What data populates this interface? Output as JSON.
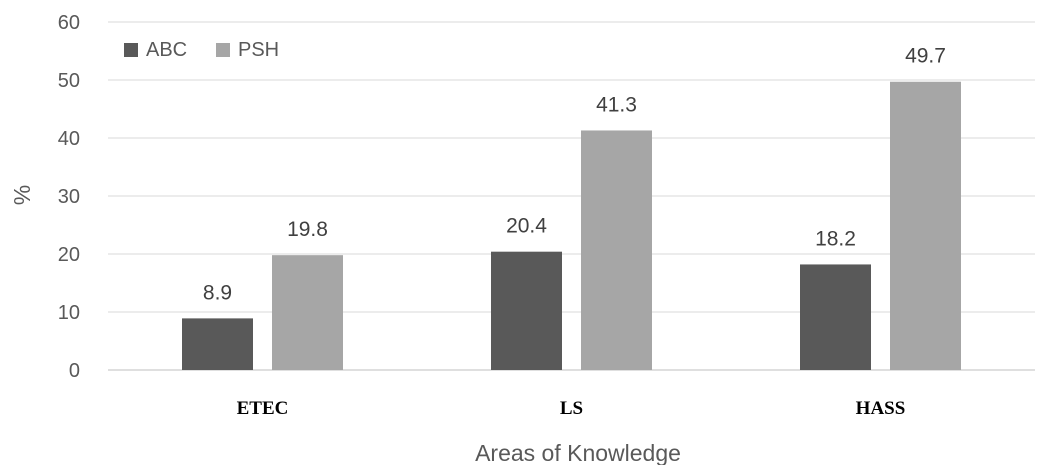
{
  "chart_data": {
    "type": "bar",
    "categories": [
      "ETEC",
      "LS",
      "HASS"
    ],
    "series": [
      {
        "name": "ABC",
        "values": [
          8.9,
          20.4,
          18.2
        ],
        "color": "#595959"
      },
      {
        "name": "PSH",
        "values": [
          19.8,
          41.3,
          49.7
        ],
        "color": "#a6a6a6"
      }
    ],
    "title": "",
    "xlabel": "Areas of Knowledge",
    "ylabel": "%",
    "ylim": [
      0,
      60
    ],
    "yticks": [
      0,
      10,
      20,
      30,
      40,
      50,
      60
    ],
    "grid": true,
    "legend": "top-left",
    "data_labels": true
  }
}
